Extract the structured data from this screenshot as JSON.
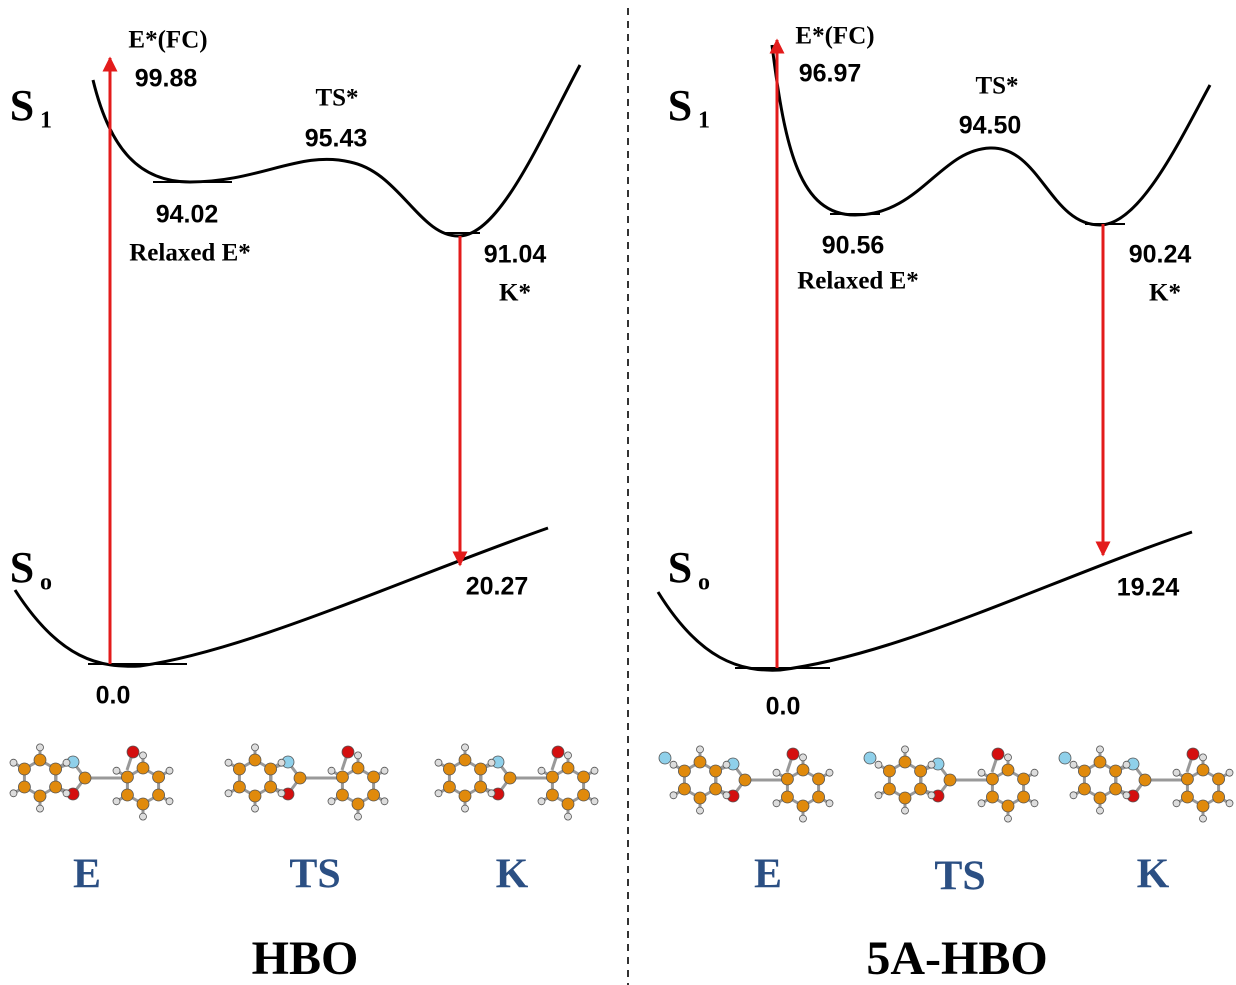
{
  "panels": [
    {
      "title": "HBO",
      "s1": {
        "base": "S",
        "sub": "1"
      },
      "s0": {
        "base": "S",
        "sub": "o"
      },
      "fc_label": "E*(FC)",
      "fc_value": "99.88",
      "ts_label": "TS*",
      "ts_value": "95.43",
      "relaxed_value": "94.02",
      "relaxed_label": "Relaxed E*",
      "k_value": "91.04",
      "k_label": "K*",
      "s0_k_value": "20.27",
      "s0_e_value": "0.0",
      "molecules": [
        "E",
        "TS",
        "K"
      ]
    },
    {
      "title": "5A-HBO",
      "s1": {
        "base": "S",
        "sub": "1"
      },
      "s0": {
        "base": "S",
        "sub": "o"
      },
      "fc_label": "E*(FC)",
      "fc_value": "96.97",
      "ts_label": "TS*",
      "ts_value": "94.50",
      "relaxed_value": "90.56",
      "relaxed_label": "Relaxed E*",
      "k_value": "90.24",
      "k_label": "K*",
      "s0_k_value": "19.24",
      "s0_e_value": "0.0",
      "molecules": [
        "E",
        "TS",
        "K"
      ]
    }
  ]
}
